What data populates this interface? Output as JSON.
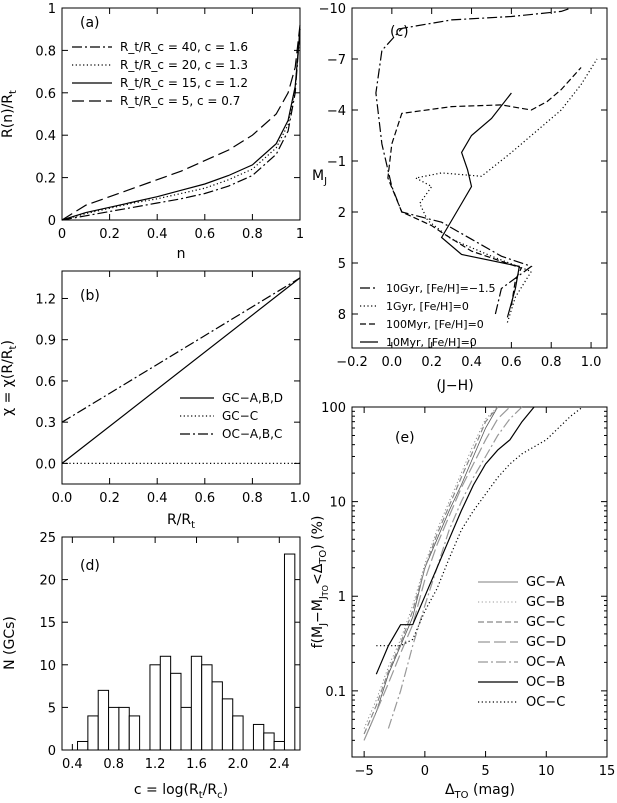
{
  "chart_data": [
    {
      "panel": "a",
      "type": "line",
      "xlabel": "n",
      "ylabel": "R(n)/R_t",
      "xlim": [
        0,
        1
      ],
      "ylim": [
        0,
        1
      ],
      "xticks": [
        0,
        0.2,
        0.4,
        0.6,
        0.8,
        1
      ],
      "xtick_labels": [
        "0",
        "0.2",
        "0.4",
        "0.6",
        "0.8",
        "1"
      ],
      "yticks": [
        0,
        0.2,
        0.4,
        0.6,
        0.8,
        1
      ],
      "ytick_labels": [
        "0",
        "0.2",
        "0.4",
        "0.6",
        "0.8",
        "1"
      ],
      "legend": "top-left",
      "series": [
        {
          "name": "R_t/R_c = 40, c = 1.6",
          "dash": "dashdot",
          "x": [
            0,
            0.1,
            0.2,
            0.3,
            0.4,
            0.5,
            0.6,
            0.7,
            0.8,
            0.9,
            0.95,
            0.98,
            1
          ],
          "y": [
            0,
            0.02,
            0.04,
            0.06,
            0.08,
            0.1,
            0.125,
            0.16,
            0.21,
            0.31,
            0.42,
            0.6,
            0.9
          ]
        },
        {
          "name": "R_t/R_c = 20, c = 1.3",
          "dash": "dotted",
          "x": [
            0,
            0.1,
            0.2,
            0.3,
            0.4,
            0.5,
            0.6,
            0.7,
            0.8,
            0.9,
            0.95,
            0.98,
            1
          ],
          "y": [
            0,
            0.03,
            0.055,
            0.08,
            0.1,
            0.125,
            0.15,
            0.19,
            0.24,
            0.34,
            0.45,
            0.62,
            0.9
          ]
        },
        {
          "name": "R_t/R_c = 15, c = 1.2",
          "dash": "solid",
          "x": [
            0,
            0.1,
            0.2,
            0.3,
            0.4,
            0.5,
            0.6,
            0.7,
            0.8,
            0.9,
            0.95,
            0.98,
            1
          ],
          "y": [
            0,
            0.035,
            0.06,
            0.085,
            0.11,
            0.14,
            0.17,
            0.21,
            0.26,
            0.36,
            0.47,
            0.63,
            0.9
          ]
        },
        {
          "name": "R_t/R_c =  5, c = 0.7",
          "dash": "longdash",
          "x": [
            0,
            0.1,
            0.2,
            0.3,
            0.4,
            0.5,
            0.6,
            0.7,
            0.8,
            0.9,
            0.95,
            0.98,
            1
          ],
          "y": [
            0,
            0.07,
            0.11,
            0.15,
            0.19,
            0.23,
            0.28,
            0.33,
            0.4,
            0.5,
            0.6,
            0.72,
            0.92
          ]
        }
      ]
    },
    {
      "panel": "b",
      "type": "line",
      "xlabel": "R/R_t",
      "ylabel": "χ = χ(R/R_t)",
      "xlim": [
        0,
        1
      ],
      "ylim": [
        -0.15,
        1.4
      ],
      "xticks": [
        0,
        0.2,
        0.4,
        0.6,
        0.8,
        1
      ],
      "xtick_labels": [
        "0.0",
        "0.2",
        "0.4",
        "0.6",
        "0.8",
        "1.0"
      ],
      "yticks": [
        0,
        0.3,
        0.6,
        0.9,
        1.2
      ],
      "ytick_labels": [
        "0.0",
        "0.3",
        "0.6",
        "0.9",
        "1.2"
      ],
      "legend": "center-right",
      "series": [
        {
          "name": "GC−A,B,D",
          "dash": "solid",
          "x": [
            0,
            1
          ],
          "y": [
            0,
            1.35
          ]
        },
        {
          "name": "GC−C",
          "dash": "dotted",
          "x": [
            0,
            1
          ],
          "y": [
            0,
            0
          ]
        },
        {
          "name": "OC−A,B,C",
          "dash": "dashdot",
          "x": [
            0,
            1
          ],
          "y": [
            0.3,
            1.35
          ]
        }
      ]
    },
    {
      "panel": "c",
      "type": "line",
      "xlabel": "(J−H)",
      "ylabel": "M_J",
      "xlim": [
        -0.2,
        1.08
      ],
      "ylim": [
        10,
        -10
      ],
      "xticks": [
        -0.2,
        0,
        0.2,
        0.4,
        0.6,
        0.8,
        1
      ],
      "xtick_labels": [
        "−0.2",
        "0.0",
        "0.2",
        "0.4",
        "0.6",
        "0.8",
        "1.0"
      ],
      "yticks": [
        -10,
        -7,
        -4,
        -1,
        2,
        5,
        8
      ],
      "ytick_labels": [
        "−10",
        "−7",
        "−4",
        "−1",
        "2",
        "5",
        "8"
      ],
      "legend": "bottom-left",
      "series": [
        {
          "name": "10Gyr, [Fe/H]=−1.5",
          "dash": "dashdot",
          "x": [
            0.52,
            0.55,
            0.7,
            0.55,
            0.4,
            0.25,
            0.15,
            0.05,
            0.0,
            -0.05,
            -0.08,
            -0.05,
            0.05,
            0.3,
            0.6,
            0.85,
            0.9
          ],
          "y": [
            8,
            6.5,
            5.2,
            4.6,
            3.6,
            2.6,
            2.3,
            2.0,
            0.5,
            -2,
            -5,
            -7.5,
            -8.8,
            -9.3,
            -9.5,
            -9.8,
            -10
          ]
        },
        {
          "name": "1Gyr, [Fe/H]=0",
          "dash": "dotted",
          "x": [
            0.58,
            0.62,
            0.7,
            0.5,
            0.3,
            0.18,
            0.14,
            0.2,
            0.12,
            0.25,
            0.45,
            0.6,
            0.75,
            0.85,
            0.95,
            1.03
          ],
          "y": [
            8.5,
            7,
            5.5,
            4.6,
            3.6,
            2.5,
            1.5,
            0.5,
            0.0,
            -0.3,
            -0.1,
            -1.5,
            -3.0,
            -4.0,
            -5.5,
            -7.0
          ]
        },
        {
          "name": "100Myr, [Fe/H]=0",
          "dash": "dashed",
          "x": [
            0.6,
            0.62,
            0.65,
            0.4,
            0.25,
            0.2,
            0.05,
            -0.02,
            0.0,
            0.05,
            0.3,
            0.55,
            0.7,
            0.78,
            0.85,
            0.95
          ],
          "y": [
            7.5,
            6,
            5.3,
            4.3,
            3.2,
            2.8,
            2.0,
            0,
            -2,
            -3.8,
            -4.2,
            -4.3,
            -4.0,
            -4.5,
            -5.2,
            -6.5
          ]
        },
        {
          "name": "10Myr, [Fe/H]=0",
          "dash": "solid",
          "x": [
            0.58,
            0.62,
            0.64,
            0.35,
            0.25,
            0.3,
            0.35,
            0.4,
            0.38,
            0.35,
            0.4,
            0.5,
            0.6
          ],
          "y": [
            8.2,
            6.5,
            5.2,
            4.5,
            3.5,
            2.5,
            1.5,
            0.5,
            -0.5,
            -1.5,
            -2.5,
            -3.5,
            -5.0
          ]
        }
      ]
    },
    {
      "panel": "d",
      "type": "bar",
      "xlabel": "c = log(R_t/R_c)",
      "ylabel": "N (GCs)",
      "xlim": [
        0.3,
        2.6
      ],
      "ylim": [
        0,
        25
      ],
      "xticks": [
        0.4,
        0.8,
        1.2,
        1.6,
        2.0,
        2.4
      ],
      "xtick_labels": [
        "0.4",
        "0.8",
        "1.2",
        "1.6",
        "2.0",
        "2.4"
      ],
      "yticks": [
        0,
        5,
        10,
        15,
        20,
        25
      ],
      "ytick_labels": [
        "0",
        "5",
        "10",
        "15",
        "20",
        "25"
      ],
      "bin_width": 0.1,
      "bin_centers": [
        0.5,
        0.6,
        0.7,
        0.8,
        0.9,
        1.0,
        1.1,
        1.2,
        1.3,
        1.4,
        1.5,
        1.6,
        1.7,
        1.8,
        1.9,
        2.0,
        2.1,
        2.2,
        2.3,
        2.4,
        2.5
      ],
      "values": [
        1,
        4,
        7,
        5,
        5,
        4,
        0,
        10,
        11,
        9,
        5,
        11,
        10,
        8,
        6,
        4,
        0,
        3,
        2,
        1,
        23
      ]
    },
    {
      "panel": "e",
      "type": "line",
      "xlabel": "Δ_TO (mag)",
      "ylabel": "f(M_J − M_J_TO < Δ_TO) (%)",
      "xscale": "linear",
      "yscale": "log",
      "xlim": [
        -6,
        15
      ],
      "ylim": [
        0.02,
        100
      ],
      "xticks": [
        -5,
        0,
        5,
        10,
        15
      ],
      "xtick_labels": [
        "−5",
        "0",
        "5",
        "10",
        "15"
      ],
      "yticks": [
        0.1,
        1,
        10,
        100
      ],
      "ytick_labels": [
        "0.1",
        "1",
        "10",
        "100"
      ],
      "legend": "bottom-right",
      "series": [
        {
          "name": "GC−A",
          "dash": "solid-thin",
          "color": "#555555",
          "x": [
            -5,
            -4,
            -3,
            -2,
            -1,
            0,
            1,
            2,
            3,
            4,
            5,
            6
          ],
          "y": [
            0.03,
            0.06,
            0.15,
            0.3,
            0.6,
            2,
            4,
            8,
            15,
            30,
            60,
            100
          ]
        },
        {
          "name": "GC−B",
          "dash": "dotted-thin",
          "color": "#777777",
          "x": [
            -5,
            -4,
            -3,
            -2,
            -1,
            0,
            1,
            2,
            3,
            4,
            5,
            6
          ],
          "y": [
            0.04,
            0.08,
            0.18,
            0.35,
            0.8,
            2.2,
            5,
            10,
            20,
            40,
            75,
            100
          ]
        },
        {
          "name": "GC−C",
          "dash": "dashed-gray",
          "color": "#888888",
          "x": [
            -5,
            -4,
            -3,
            -2,
            -1,
            0,
            1,
            2,
            3,
            4,
            5,
            6
          ],
          "y": [
            0.035,
            0.07,
            0.16,
            0.32,
            0.7,
            2,
            4.5,
            9,
            18,
            35,
            70,
            100
          ]
        },
        {
          "name": "GC−D",
          "dash": "longdash-gray",
          "color": "#999999",
          "x": [
            -5,
            -4,
            -3,
            -2,
            -1,
            0,
            1,
            2,
            3,
            4,
            5,
            6,
            7
          ],
          "y": [
            0.03,
            0.06,
            0.12,
            0.25,
            0.5,
            1.5,
            3.5,
            7,
            14,
            25,
            45,
            75,
            100
          ]
        },
        {
          "name": "OC−A",
          "dash": "dashdot-gray",
          "color": "#999999",
          "x": [
            -3,
            -2,
            -1,
            0,
            1,
            2,
            3,
            4,
            5,
            6,
            7,
            8
          ],
          "y": [
            0.04,
            0.1,
            0.3,
            0.8,
            2,
            5,
            10,
            18,
            30,
            50,
            75,
            100
          ]
        },
        {
          "name": "OC−B",
          "dash": "solid",
          "color": "#000000",
          "x": [
            -4,
            -3,
            -2,
            -1,
            0,
            1,
            2,
            3,
            4,
            5,
            6,
            7,
            8,
            9
          ],
          "y": [
            0.15,
            0.3,
            0.5,
            0.5,
            1,
            2,
            4,
            8,
            15,
            25,
            35,
            45,
            70,
            100
          ]
        },
        {
          "name": "OC−C",
          "dash": "dotted",
          "color": "#000000",
          "x": [
            -4,
            -3,
            -2,
            -1,
            0,
            1,
            2,
            3,
            4,
            5,
            6,
            7,
            8,
            9,
            10,
            11,
            12,
            13
          ],
          "y": [
            0.3,
            0.3,
            0.3,
            0.35,
            0.7,
            1.2,
            2.5,
            5,
            8,
            12,
            18,
            25,
            32,
            38,
            45,
            60,
            80,
            100
          ]
        }
      ]
    }
  ]
}
